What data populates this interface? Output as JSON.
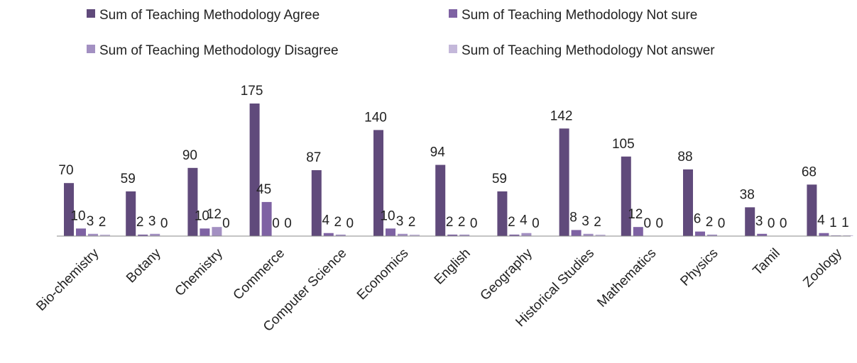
{
  "chart_data": {
    "type": "bar",
    "categories": [
      "Bio-chemistry",
      "Botany",
      "Chemistry",
      "Commerce",
      "Computer Science",
      "Economics",
      "English",
      "Geography",
      "Historical Studies",
      "Mathematics",
      "Physics",
      "Tamil",
      "Zoology"
    ],
    "series": [
      {
        "name": "Sum of Teaching Methodology Agree",
        "color": "#604a7b",
        "values": [
          70,
          59,
          90,
          175,
          87,
          140,
          94,
          59,
          142,
          105,
          88,
          38,
          68
        ]
      },
      {
        "name": "Sum of Teaching Methodology Not sure",
        "color": "#7e62a3",
        "values": [
          10,
          2,
          10,
          45,
          4,
          10,
          2,
          2,
          8,
          12,
          6,
          3,
          4
        ]
      },
      {
        "name": "Sum of Teaching Methodology Disagree",
        "color": "#a390c2",
        "values": [
          3,
          3,
          12,
          0,
          2,
          3,
          2,
          4,
          3,
          0,
          2,
          0,
          1
        ]
      },
      {
        "name": "Sum of Teaching Methodology Not answer",
        "color": "#c4b8da",
        "values": [
          2,
          0,
          0,
          0,
          0,
          2,
          0,
          0,
          2,
          0,
          0,
          0,
          1
        ]
      }
    ]
  }
}
